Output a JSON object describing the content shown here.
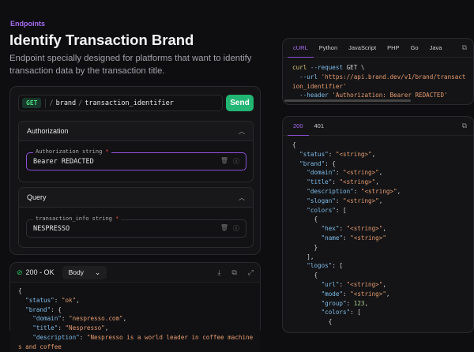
{
  "breadcrumb": "Endpoints",
  "title": "Identify Transaction Brand",
  "description": "Endpoint specially designed for platforms that want to identify transaction data by the transaction title.",
  "request": {
    "method": "GET",
    "path": [
      "brand",
      "transaction_identifier"
    ],
    "send_label": "Send",
    "authorization": {
      "section": "Authorization",
      "label": "Authorization",
      "type": "string",
      "value": "Bearer REDACTED"
    },
    "query": {
      "section": "Query",
      "label": "transaction_info",
      "type": "string",
      "value": "NESPRESSO"
    }
  },
  "response": {
    "status": "200 - OK",
    "view": "Body",
    "lines": [
      [
        [
          "p",
          "{"
        ]
      ],
      [
        [
          "p",
          "  "
        ],
        [
          "k",
          "\"status\""
        ],
        [
          "p",
          ": "
        ],
        [
          "s",
          "\"ok\""
        ],
        [
          "p",
          ","
        ]
      ],
      [
        [
          "p",
          "  "
        ],
        [
          "k",
          "\"brand\""
        ],
        [
          "p",
          ": {"
        ]
      ],
      [
        [
          "p",
          "    "
        ],
        [
          "k",
          "\"domain\""
        ],
        [
          "p",
          ": "
        ],
        [
          "s",
          "\"nespresso.com\""
        ],
        [
          "p",
          ","
        ]
      ],
      [
        [
          "p",
          "    "
        ],
        [
          "k",
          "\"title\""
        ],
        [
          "p",
          ": "
        ],
        [
          "s",
          "\"Nespresso\""
        ],
        [
          "p",
          ","
        ]
      ],
      [
        [
          "p",
          "    "
        ],
        [
          "k",
          "\"description\""
        ],
        [
          "p",
          ": "
        ],
        [
          "s",
          "\"Nespresso is a world leader in coffee machines and coffee"
        ]
      ]
    ]
  },
  "code_samples": {
    "tabs": [
      "cURL",
      "Python",
      "JavaScript",
      "PHP",
      "Go",
      "Java"
    ],
    "active": "cURL",
    "lines": [
      [
        [
          "kw",
          "curl"
        ],
        [
          "f",
          " --request"
        ],
        [
          "p",
          " GET \\"
        ]
      ],
      [
        [
          "f",
          "  --url"
        ],
        [
          "s",
          " 'https://api.brand.dev/v1/brand/transaction_identifier'"
        ]
      ],
      [
        [
          "f",
          "  --header"
        ],
        [
          "s",
          " 'Authorization: Bearer REDACTED'"
        ]
      ]
    ]
  },
  "response_schema": {
    "tabs": [
      "200",
      "401"
    ],
    "active": "200",
    "lines": [
      [
        [
          "p",
          "{"
        ]
      ],
      [
        [
          "p",
          "  "
        ],
        [
          "k",
          "\"status\""
        ],
        [
          "p",
          ": "
        ],
        [
          "s",
          "\"<string>\""
        ],
        [
          "p",
          ","
        ]
      ],
      [
        [
          "p",
          "  "
        ],
        [
          "k",
          "\"brand\""
        ],
        [
          "p",
          ": {"
        ]
      ],
      [
        [
          "p",
          "    "
        ],
        [
          "k",
          "\"domain\""
        ],
        [
          "p",
          ": "
        ],
        [
          "s",
          "\"<string>\""
        ],
        [
          "p",
          ","
        ]
      ],
      [
        [
          "p",
          "    "
        ],
        [
          "k",
          "\"title\""
        ],
        [
          "p",
          ": "
        ],
        [
          "s",
          "\"<string>\""
        ],
        [
          "p",
          ","
        ]
      ],
      [
        [
          "p",
          "    "
        ],
        [
          "k",
          "\"description\""
        ],
        [
          "p",
          ": "
        ],
        [
          "s",
          "\"<string>\""
        ],
        [
          "p",
          ","
        ]
      ],
      [
        [
          "p",
          "    "
        ],
        [
          "k",
          "\"slogan\""
        ],
        [
          "p",
          ": "
        ],
        [
          "s",
          "\"<string>\""
        ],
        [
          "p",
          ","
        ]
      ],
      [
        [
          "p",
          "    "
        ],
        [
          "k",
          "\"colors\""
        ],
        [
          "p",
          ": ["
        ]
      ],
      [
        [
          "p",
          "      {"
        ]
      ],
      [
        [
          "p",
          "        "
        ],
        [
          "k",
          "\"hex\""
        ],
        [
          "p",
          ": "
        ],
        [
          "s",
          "\"<string>\""
        ],
        [
          "p",
          ","
        ]
      ],
      [
        [
          "p",
          "        "
        ],
        [
          "k",
          "\"name\""
        ],
        [
          "p",
          ": "
        ],
        [
          "s",
          "\"<string>\""
        ]
      ],
      [
        [
          "p",
          "      }"
        ]
      ],
      [
        [
          "p",
          "    ],"
        ]
      ],
      [
        [
          "p",
          "    "
        ],
        [
          "k",
          "\"logos\""
        ],
        [
          "p",
          ": ["
        ]
      ],
      [
        [
          "p",
          "      {"
        ]
      ],
      [
        [
          "p",
          "        "
        ],
        [
          "k",
          "\"url\""
        ],
        [
          "p",
          ": "
        ],
        [
          "s",
          "\"<string>\""
        ],
        [
          "p",
          ","
        ]
      ],
      [
        [
          "p",
          "        "
        ],
        [
          "k",
          "\"mode\""
        ],
        [
          "p",
          ": "
        ],
        [
          "s",
          "\"<string>\""
        ],
        [
          "p",
          ","
        ]
      ],
      [
        [
          "p",
          "        "
        ],
        [
          "k",
          "\"group\""
        ],
        [
          "p",
          ": "
        ],
        [
          "n",
          "123"
        ],
        [
          "p",
          ","
        ]
      ],
      [
        [
          "p",
          "        "
        ],
        [
          "k",
          "\"colors\""
        ],
        [
          "p",
          ": ["
        ]
      ],
      [
        [
          "p",
          "          {"
        ]
      ]
    ]
  },
  "colors": {
    "accent": "#8b4fd6",
    "send": "#22b573",
    "get": "#4ade80"
  }
}
